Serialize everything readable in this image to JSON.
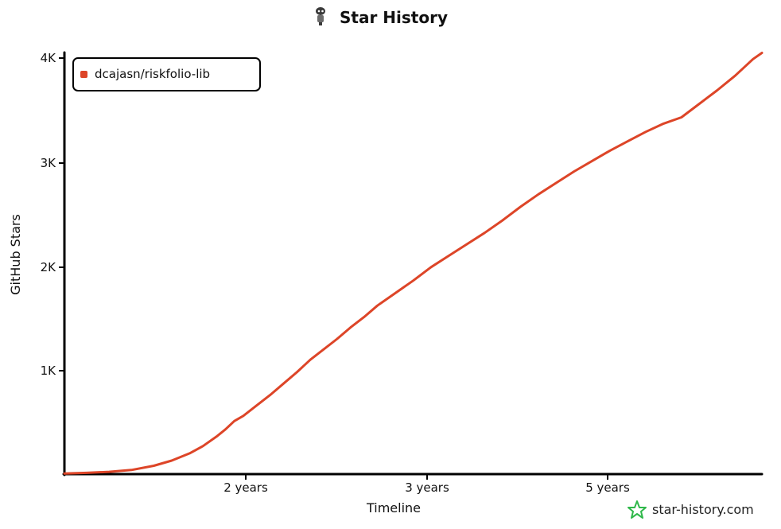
{
  "chart_data": {
    "type": "line",
    "title": "Star History",
    "xlabel": "Timeline",
    "ylabel": "GitHub Stars",
    "x_ticks": [
      "2 years",
      "3 years",
      "5 years"
    ],
    "y_ticks": [
      "1K",
      "2K",
      "3K",
      "4K"
    ],
    "ylim": [
      0,
      4000
    ],
    "legend_position": "top-left",
    "grid": false,
    "series": [
      {
        "name": "dcajasn/riskfolio-lib",
        "color": "#dd4528",
        "points": [
          [
            0.0,
            5
          ],
          [
            0.25,
            12
          ],
          [
            0.5,
            22
          ],
          [
            0.75,
            40
          ],
          [
            1.0,
            80
          ],
          [
            1.2,
            130
          ],
          [
            1.4,
            200
          ],
          [
            1.55,
            270
          ],
          [
            1.7,
            360
          ],
          [
            1.8,
            430
          ],
          [
            1.9,
            510
          ],
          [
            2.0,
            560
          ],
          [
            2.15,
            660
          ],
          [
            2.3,
            760
          ],
          [
            2.45,
            870
          ],
          [
            2.6,
            980
          ],
          [
            2.75,
            1100
          ],
          [
            2.9,
            1200
          ],
          [
            3.05,
            1300
          ],
          [
            3.2,
            1410
          ],
          [
            3.35,
            1510
          ],
          [
            3.5,
            1620
          ],
          [
            3.7,
            1740
          ],
          [
            3.9,
            1860
          ],
          [
            4.1,
            1990
          ],
          [
            4.3,
            2100
          ],
          [
            4.5,
            2210
          ],
          [
            4.7,
            2320
          ],
          [
            4.9,
            2440
          ],
          [
            5.1,
            2570
          ],
          [
            5.3,
            2690
          ],
          [
            5.5,
            2800
          ],
          [
            5.7,
            2910
          ],
          [
            5.9,
            3010
          ],
          [
            6.1,
            3110
          ],
          [
            6.3,
            3200
          ],
          [
            6.5,
            3290
          ],
          [
            6.7,
            3370
          ],
          [
            6.9,
            3430
          ],
          [
            7.1,
            3560
          ],
          [
            7.3,
            3690
          ],
          [
            7.5,
            3830
          ],
          [
            7.7,
            3990
          ],
          [
            7.8,
            4050
          ]
        ]
      }
    ]
  },
  "watermark": {
    "text": "star-history.com",
    "icon": "star-icon",
    "color": "#2fb84a"
  },
  "title_icon": "mascot-icon"
}
